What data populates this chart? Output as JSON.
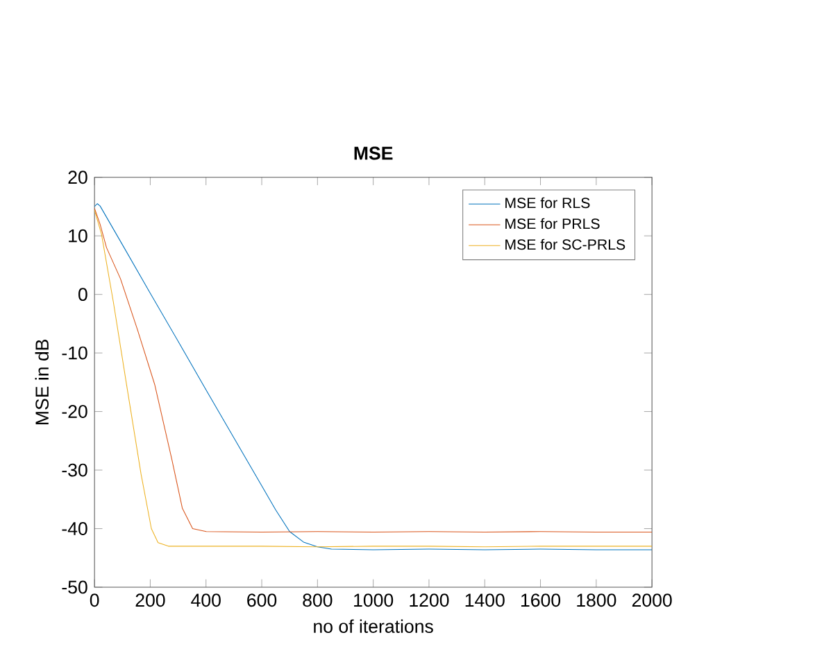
{
  "chart_data": {
    "type": "line",
    "title": "MSE",
    "xlabel": "no of iterations",
    "ylabel": "MSE in dB",
    "xlim": [
      0,
      2000
    ],
    "ylim": [
      -50,
      20
    ],
    "xticks": [
      0,
      200,
      400,
      600,
      800,
      1000,
      1200,
      1400,
      1600,
      1800,
      2000
    ],
    "yticks": [
      -50,
      -40,
      -30,
      -20,
      -10,
      0,
      10,
      20
    ],
    "legend": "top right",
    "line_style": "solid",
    "series": [
      {
        "name": "MSE for RLS",
        "color": "#0072bd",
        "x": [
          0,
          10,
          20,
          100,
          200,
          300,
          400,
          500,
          600,
          650,
          700,
          750,
          800,
          850,
          1000,
          1200,
          1400,
          1600,
          1800,
          2000
        ],
        "values": [
          15,
          15.5,
          15.1,
          8.5,
          0.2,
          -8,
          -16.3,
          -24.5,
          -32.7,
          -36.8,
          -40.5,
          -42.3,
          -43.1,
          -43.5,
          -43.6,
          -43.5,
          -43.6,
          -43.5,
          -43.6,
          -43.6
        ]
      },
      {
        "name": "MSE for PRLS",
        "color": "#d95319",
        "x": [
          0,
          20,
          43,
          93,
          154,
          216,
          278,
          315,
          352,
          401,
          600,
          800,
          1000,
          1200,
          1400,
          1600,
          1800,
          2000
        ],
        "values": [
          14.7,
          12,
          8,
          2.7,
          -6,
          -15.4,
          -28.3,
          -36.5,
          -40,
          -40.5,
          -40.6,
          -40.5,
          -40.6,
          -40.5,
          -40.6,
          -40.5,
          -40.6,
          -40.6
        ]
      },
      {
        "name": "MSE for SC-PRLS",
        "color": "#edb120",
        "x": [
          0,
          25,
          68,
          117,
          167,
          204,
          228,
          265,
          400,
          600,
          800,
          1000,
          1200,
          1400,
          1600,
          1800,
          2000
        ],
        "values": [
          14.4,
          10.3,
          -1.4,
          -16,
          -30.7,
          -40,
          -42.4,
          -43,
          -43,
          -43,
          -43.1,
          -43,
          -43,
          -43.1,
          -43,
          -43,
          -43
        ]
      }
    ]
  }
}
